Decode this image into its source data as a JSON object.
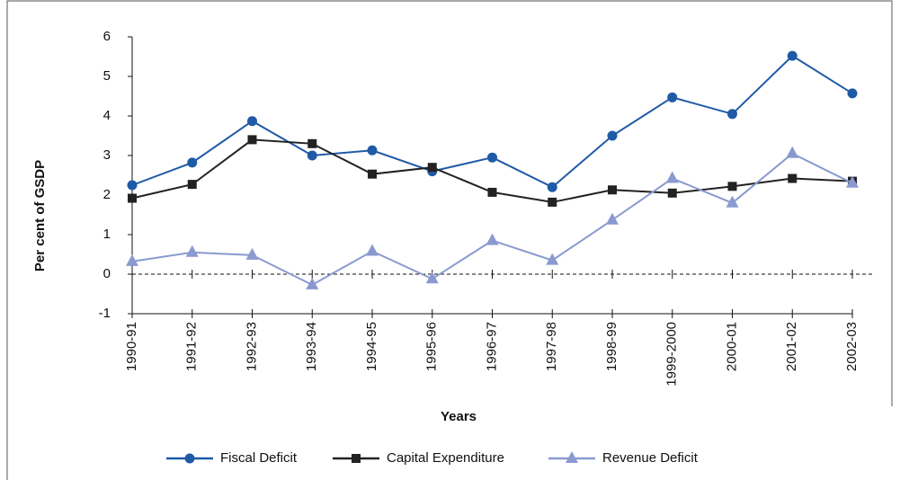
{
  "chart_data": {
    "type": "line",
    "y_label": "Per cent of GSDP",
    "x_label": "Years",
    "categories": [
      "1990-91",
      "1991-92",
      "1992-93",
      "1993-94",
      "1994-95",
      "1995-96",
      "1996-97",
      "1997-98",
      "1998-99",
      "1999-2000",
      "2000-01",
      "2001-02",
      "2002-03"
    ],
    "series": [
      {
        "name": "Fiscal Deficit",
        "color": "#1f5aa6",
        "marker": "circle",
        "values": [
          2.25,
          2.82,
          3.87,
          3.0,
          3.13,
          2.6,
          2.95,
          2.2,
          3.5,
          4.47,
          4.05,
          5.52,
          4.57
        ]
      },
      {
        "name": "Capital Expenditure",
        "color": "#222222",
        "marker": "square",
        "values": [
          1.92,
          2.27,
          3.4,
          3.3,
          2.53,
          2.7,
          2.07,
          1.82,
          2.13,
          2.05,
          2.22,
          2.42,
          2.35
        ]
      },
      {
        "name": "Revenue Deficit",
        "color": "#8a9ad0",
        "marker": "triangle",
        "values": [
          0.32,
          0.55,
          0.48,
          -0.27,
          0.58,
          -0.12,
          0.85,
          0.35,
          1.37,
          2.42,
          1.8,
          3.05,
          2.3
        ]
      }
    ],
    "ylim": [
      -1,
      6
    ],
    "yticks": [
      -1,
      0,
      1,
      2,
      3,
      4,
      5,
      6
    ]
  }
}
